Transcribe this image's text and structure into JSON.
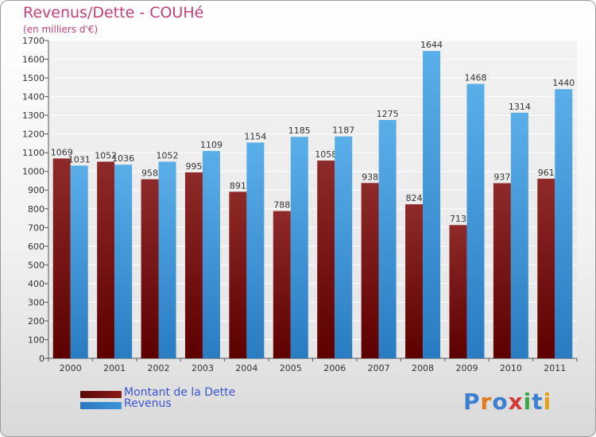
{
  "header": {
    "title": "Revenus/Dette - COUHé",
    "subtitle": "(en milliers d'€)"
  },
  "legend": [
    {
      "label": "Montant de la Dette",
      "color": "#8b1a1a"
    },
    {
      "label": "Revenus",
      "color": "#3a95db"
    }
  ],
  "logo": {
    "text": "Proxiti",
    "colors": [
      "#3a7fd0",
      "#e07a1a",
      "#3a7fd0",
      "#d43a3a",
      "#3aa84a",
      "#3a7fd0",
      "#e0a01a"
    ]
  },
  "chart_data": {
    "type": "bar",
    "title": "Revenus/Dette - COUHé",
    "subtitle": "(en milliers d'€)",
    "categories": [
      "2000",
      "2001",
      "2002",
      "2003",
      "2004",
      "2005",
      "2006",
      "2007",
      "2008",
      "2009",
      "2010",
      "2011"
    ],
    "series": [
      {
        "name": "Montant de la Dette",
        "color": "#8b1a1a",
        "values": [
          1069,
          1052,
          958,
          995,
          891,
          788,
          1058,
          938,
          824,
          713,
          937,
          961
        ]
      },
      {
        "name": "Revenus",
        "color": "#3a95db",
        "values": [
          1031,
          1036,
          1052,
          1109,
          1154,
          1185,
          1187,
          1275,
          1644,
          1468,
          1314,
          1440
        ]
      }
    ],
    "ylim": [
      0,
      1700
    ],
    "yticks": [
      0,
      100,
      200,
      300,
      400,
      500,
      600,
      700,
      800,
      900,
      1000,
      1100,
      1200,
      1300,
      1400,
      1500,
      1600,
      1700
    ],
    "grid": true,
    "legend_position": "bottom-left"
  }
}
